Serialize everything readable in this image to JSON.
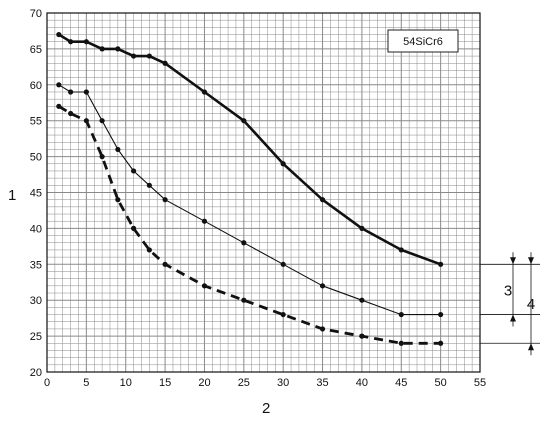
{
  "chart_data": {
    "type": "line",
    "title": "",
    "legend": {
      "text": "54SiCr6",
      "placement": "top-right"
    },
    "xlabel": "2",
    "ylabel": "1",
    "xlim": [
      0,
      55
    ],
    "ylim": [
      20,
      70
    ],
    "x_ticks": [
      0,
      5,
      10,
      15,
      20,
      25,
      30,
      35,
      40,
      45,
      50,
      55
    ],
    "y_ticks": [
      20,
      25,
      30,
      35,
      40,
      45,
      50,
      55,
      60,
      65,
      70
    ],
    "grid": true,
    "series": [
      {
        "style": "thick-solid",
        "x": [
          1.5,
          3,
          5,
          7,
          9,
          11,
          13,
          15,
          20,
          25,
          30,
          35,
          40,
          45,
          50
        ],
        "y": [
          67,
          66,
          66,
          65,
          65,
          64,
          64,
          63,
          59,
          55,
          49,
          44,
          40,
          37,
          35
        ]
      },
      {
        "style": "thin-solid",
        "x": [
          1.5,
          3,
          5,
          7,
          9,
          11,
          13,
          15,
          20,
          25,
          30,
          35,
          40,
          45,
          50
        ],
        "y": [
          60,
          59,
          59,
          55,
          51,
          48,
          46,
          44,
          41,
          38,
          35,
          32,
          30,
          28,
          28
        ]
      },
      {
        "style": "thick-dashed",
        "x": [
          1.5,
          3,
          5,
          7,
          9,
          11,
          13,
          15,
          20,
          25,
          30,
          35,
          40,
          45,
          50
        ],
        "y": [
          57,
          56,
          55,
          50,
          44,
          40,
          37,
          35,
          32,
          30,
          28,
          26,
          25,
          24,
          24
        ]
      }
    ],
    "annotations": [
      {
        "label": "3",
        "from": 28,
        "to": 35
      },
      {
        "label": "4",
        "from": 24,
        "to": 35
      }
    ]
  }
}
